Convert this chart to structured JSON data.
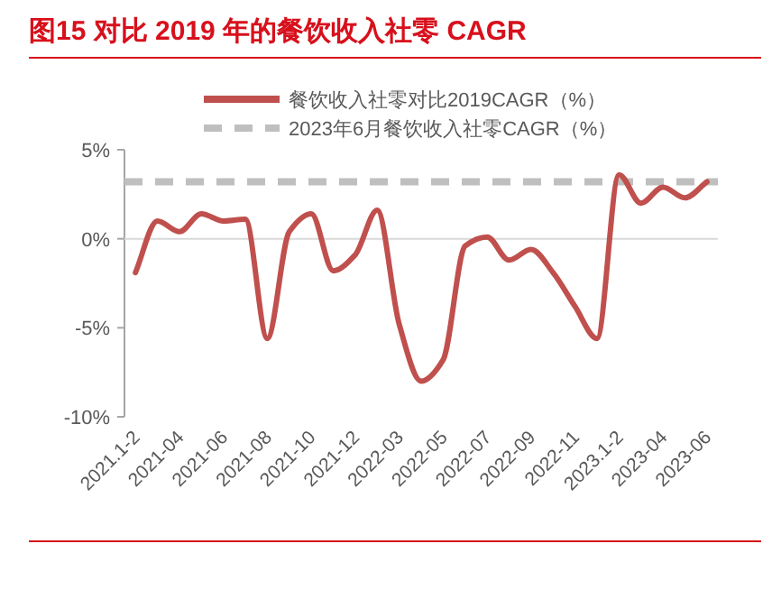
{
  "chart_data": {
    "type": "line",
    "title": "图15  对比 2019 年的餐饮收入社零 CAGR",
    "categories": [
      "2021.1-2",
      null,
      "2021-04",
      null,
      "2021-06",
      null,
      "2021-08",
      null,
      "2021-10",
      null,
      "2021-12",
      null,
      "2022-03",
      null,
      "2022-05",
      null,
      "2022-07",
      null,
      "2022-09",
      null,
      "2022-11",
      null,
      "2023.1-2",
      null,
      "2023-04",
      null,
      "2023-06"
    ],
    "series": [
      {
        "name": "餐饮收入社零对比2019CAGR（%）",
        "color": "#c0504d",
        "values": [
          -1.9,
          1.0,
          0.4,
          1.4,
          1.0,
          1.1,
          -5.6,
          0.4,
          1.4,
          -1.8,
          -0.9,
          1.6,
          -4.8,
          -8.0,
          -6.8,
          -0.4,
          0.1,
          -1.2,
          -0.6,
          -1.9,
          -3.8,
          -5.6,
          3.6,
          2.0,
          2.9,
          2.3,
          3.2
        ]
      }
    ],
    "ref_lines": [
      {
        "axis": "y",
        "value": 3.2,
        "label": "2023年6月餐饮收入社零CAGR（%）",
        "color": "#bfbfbf",
        "line_style": "dashed"
      }
    ],
    "ylim": [
      -10,
      5
    ],
    "yticks": [
      {
        "value": 5,
        "label": "5%"
      },
      {
        "value": 0,
        "label": "0%"
      },
      {
        "value": -5,
        "label": "-5%"
      },
      {
        "value": -10,
        "label": "-10%"
      }
    ],
    "legend": "top",
    "marker": "none",
    "line_style": "solid"
  }
}
